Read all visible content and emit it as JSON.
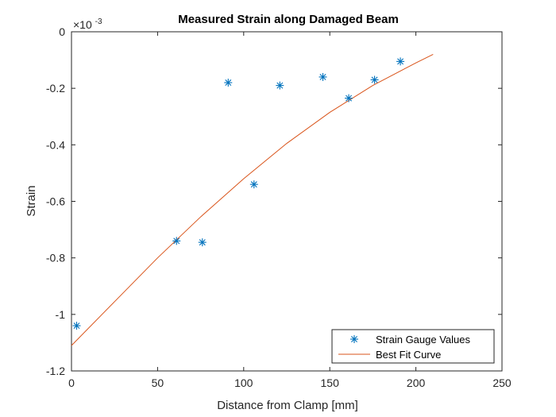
{
  "chart_data": {
    "type": "scatter",
    "title": "Measured Strain along Damaged Beam",
    "xlabel": "Distance from Clamp [mm]",
    "ylabel": "Strain",
    "exponent_label": "×10",
    "exponent_power": "-3",
    "xlim": [
      0,
      250
    ],
    "ylim": [
      -1.2,
      0
    ],
    "y_scale_factor": 0.001,
    "x_ticks": [
      0,
      50,
      100,
      150,
      200,
      250
    ],
    "x_tick_labels": [
      "0",
      "50",
      "100",
      "150",
      "200",
      "250"
    ],
    "y_ticks": [
      -1.2,
      -1,
      -0.8,
      -0.6,
      -0.4,
      -0.2,
      0
    ],
    "y_tick_labels": [
      "-1.2",
      "-1",
      "-0.8",
      "-0.6",
      "-0.4",
      "-0.2",
      "0"
    ],
    "grid": false,
    "legend_position": "bottom-right",
    "series": [
      {
        "name": "Strain Gauge Values",
        "kind": "scatter",
        "marker": "asterisk",
        "color": "#0072BD",
        "points": [
          {
            "x": 3,
            "y": -1.04
          },
          {
            "x": 61,
            "y": -0.74
          },
          {
            "x": 76,
            "y": -0.745
          },
          {
            "x": 91,
            "y": -0.18
          },
          {
            "x": 106,
            "y": -0.54
          },
          {
            "x": 121,
            "y": -0.19
          },
          {
            "x": 146,
            "y": -0.16
          },
          {
            "x": 161,
            "y": -0.235
          },
          {
            "x": 176,
            "y": -0.17
          },
          {
            "x": 191,
            "y": -0.105
          }
        ]
      },
      {
        "name": "Best Fit Curve",
        "kind": "line",
        "color": "#D95319",
        "points": [
          {
            "x": 0,
            "y": -1.11
          },
          {
            "x": 25,
            "y": -0.955
          },
          {
            "x": 50,
            "y": -0.8
          },
          {
            "x": 75,
            "y": -0.655
          },
          {
            "x": 100,
            "y": -0.52
          },
          {
            "x": 125,
            "y": -0.395
          },
          {
            "x": 150,
            "y": -0.285
          },
          {
            "x": 175,
            "y": -0.19
          },
          {
            "x": 200,
            "y": -0.11
          },
          {
            "x": 210,
            "y": -0.08
          }
        ]
      }
    ]
  }
}
